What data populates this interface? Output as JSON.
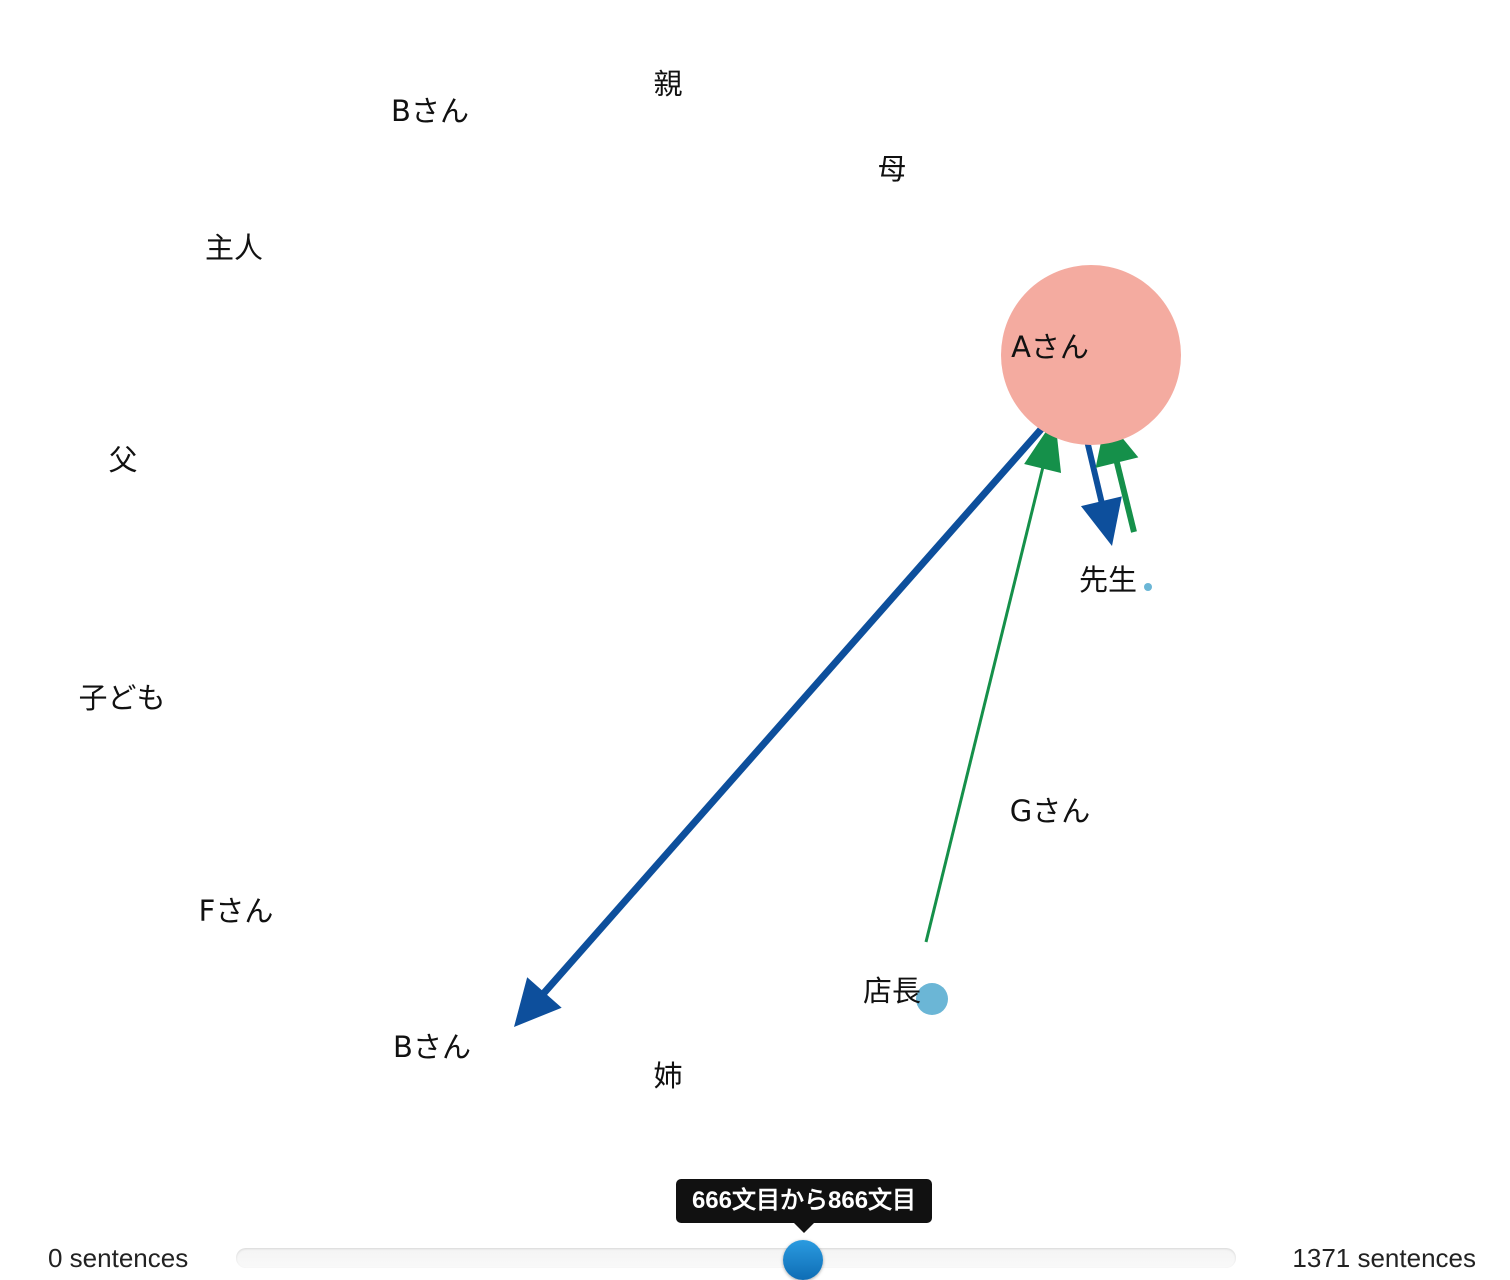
{
  "graph": {
    "nodes": [
      {
        "id": "oya",
        "label": "親",
        "radius": 0,
        "color": ""
      },
      {
        "id": "b_top",
        "label": "Bさん",
        "radius": 0,
        "color": ""
      },
      {
        "id": "haha",
        "label": "母",
        "radius": 0,
        "color": ""
      },
      {
        "id": "shujin",
        "label": "主人",
        "radius": 0,
        "color": ""
      },
      {
        "id": "a",
        "label": "Aさん",
        "radius": 90,
        "color": "#f4aba0"
      },
      {
        "id": "chichi",
        "label": "父",
        "radius": 0,
        "color": ""
      },
      {
        "id": "sensei",
        "label": "先生",
        "radius": 4,
        "color": "#6bb6d6"
      },
      {
        "id": "kodomo",
        "label": "子ども",
        "radius": 0,
        "color": ""
      },
      {
        "id": "g",
        "label": "Gさん",
        "radius": 0,
        "color": ""
      },
      {
        "id": "f",
        "label": "Fさん",
        "radius": 0,
        "color": ""
      },
      {
        "id": "tencho",
        "label": "店長",
        "radius": 16,
        "color": "#6bb6d6"
      },
      {
        "id": "b_bottom",
        "label": "Bさん",
        "radius": 0,
        "color": ""
      },
      {
        "id": "ane",
        "label": "姉",
        "radius": 0,
        "color": ""
      }
    ],
    "edges": [
      {
        "source": "a",
        "target": "b_bottom",
        "color": "#0d4f9c",
        "width": 7
      },
      {
        "source": "a",
        "target": "sensei",
        "color": "#0d4f9c",
        "width": 6
      },
      {
        "source": "sensei",
        "target": "a",
        "color": "#15904a",
        "width": 6
      },
      {
        "source": "tencho",
        "target": "a",
        "color": "#15904a",
        "width": 3
      }
    ]
  },
  "slider": {
    "min_label": "0 sentences",
    "max_label": "1371 sentences",
    "min": 0,
    "max": 1371,
    "range_start": 666,
    "range_end": 866,
    "tooltip": "666文目から866文目",
    "handle_color": "#1a86cf"
  }
}
